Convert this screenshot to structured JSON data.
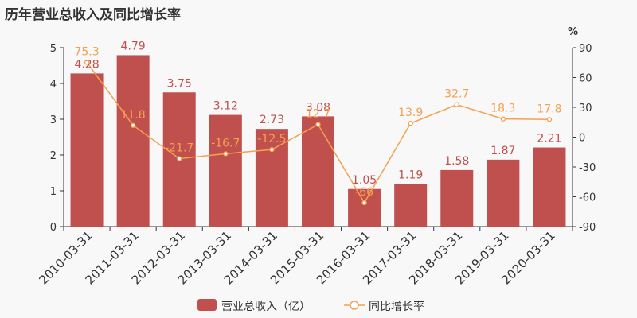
{
  "title": "历年营业总收入及同比增长率",
  "chart_data": {
    "type": "bar",
    "categories": [
      "2010-03-31",
      "2011-03-31",
      "2012-03-31",
      "2013-03-31",
      "2014-03-31",
      "2015-03-31",
      "2016-03-31",
      "2017-03-31",
      "2018-03-31",
      "2019-03-31",
      "2020-03-31"
    ],
    "series": [
      {
        "name": "营业总收入（亿）",
        "type": "bar",
        "axis": "left",
        "color": "#c0504d",
        "label_color": "#c0504d",
        "values": [
          4.28,
          4.79,
          3.75,
          3.12,
          2.73,
          3.08,
          1.05,
          1.19,
          1.58,
          1.87,
          2.21
        ],
        "labels": [
          "4.28",
          "4.79",
          "3.75",
          "3.12",
          "2.73",
          "3.08",
          "1.05",
          "1.19",
          "1.58",
          "1.87",
          "2.21"
        ]
      },
      {
        "name": "同比增长率",
        "type": "line",
        "axis": "right",
        "color": "#f5a050",
        "values": [
          75.3,
          11.8,
          -21.7,
          -16.7,
          -12.5,
          12.7,
          -66,
          13.9,
          32.7,
          18.3,
          17.8
        ],
        "labels": [
          "75.3",
          "11.8",
          "-21.7",
          "-16.7",
          "-12.5",
          "12.7",
          "-66",
          "13.9",
          "32.7",
          "18.3",
          "17.8"
        ]
      }
    ],
    "y_left": {
      "ylim": [
        0,
        5
      ],
      "ticks": [
        "0",
        "1",
        "2",
        "3",
        "4",
        "5"
      ]
    },
    "y_right": {
      "ylim": [
        -90,
        90
      ],
      "unit": "%",
      "ticks": [
        "-90",
        "-60",
        "-30",
        "0",
        "30",
        "60",
        "90"
      ]
    },
    "legend": "bottom-center",
    "grid": false
  }
}
